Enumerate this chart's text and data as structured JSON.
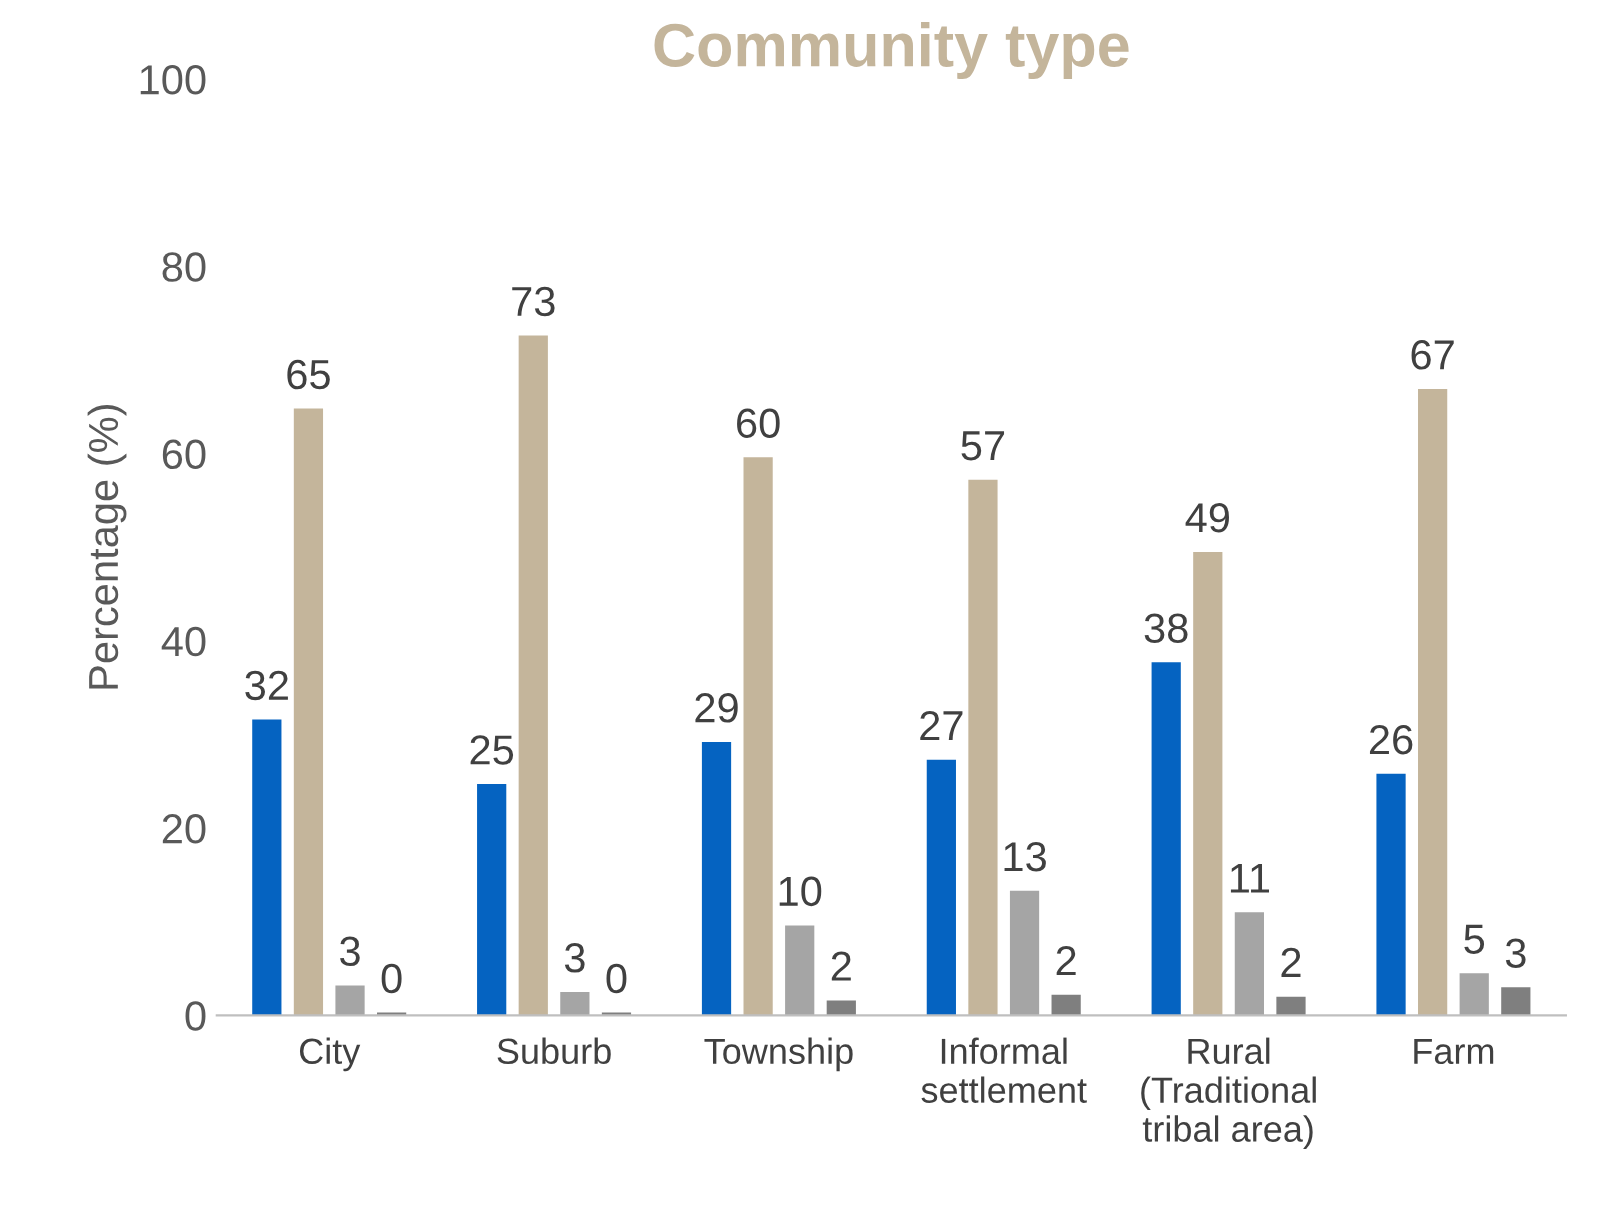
{
  "chart_data": {
    "type": "bar",
    "title": "Community type",
    "ylabel": "Percentage (%)",
    "categories": [
      "City",
      "Suburb",
      "Township",
      "Informal\nsettlement",
      "Rural\n(Traditional\ntribal area)",
      "Farm"
    ],
    "series": [
      {
        "color": "#0563c1",
        "values": [
          31.6,
          24.7,
          29.2,
          27.3,
          37.7,
          25.8
        ],
        "value_labels": [
          "32",
          "25",
          "29",
          "27",
          "38",
          "26"
        ]
      },
      {
        "color": "#c4b59b",
        "values": [
          64.8,
          72.6,
          59.6,
          57.2,
          49.5,
          66.9
        ],
        "value_labels": [
          "65",
          "73",
          "60",
          "57",
          "49",
          "67"
        ]
      },
      {
        "color": "#a5a5a5",
        "values": [
          3.2,
          2.5,
          9.6,
          13.3,
          11.0,
          4.5
        ],
        "value_labels": [
          "3",
          "3",
          "10",
          "13",
          "11",
          "5"
        ]
      },
      {
        "color": "#7f7f7f",
        "values": [
          0.3,
          0.3,
          1.6,
          2.2,
          2.0,
          3.0
        ],
        "value_labels": [
          "0",
          "0",
          "2",
          "2",
          "2",
          "3"
        ]
      }
    ],
    "ylim": [
      0,
      100
    ],
    "yticks": [
      0,
      20,
      40,
      60,
      80,
      100
    ],
    "grid": false,
    "legend": false
  }
}
